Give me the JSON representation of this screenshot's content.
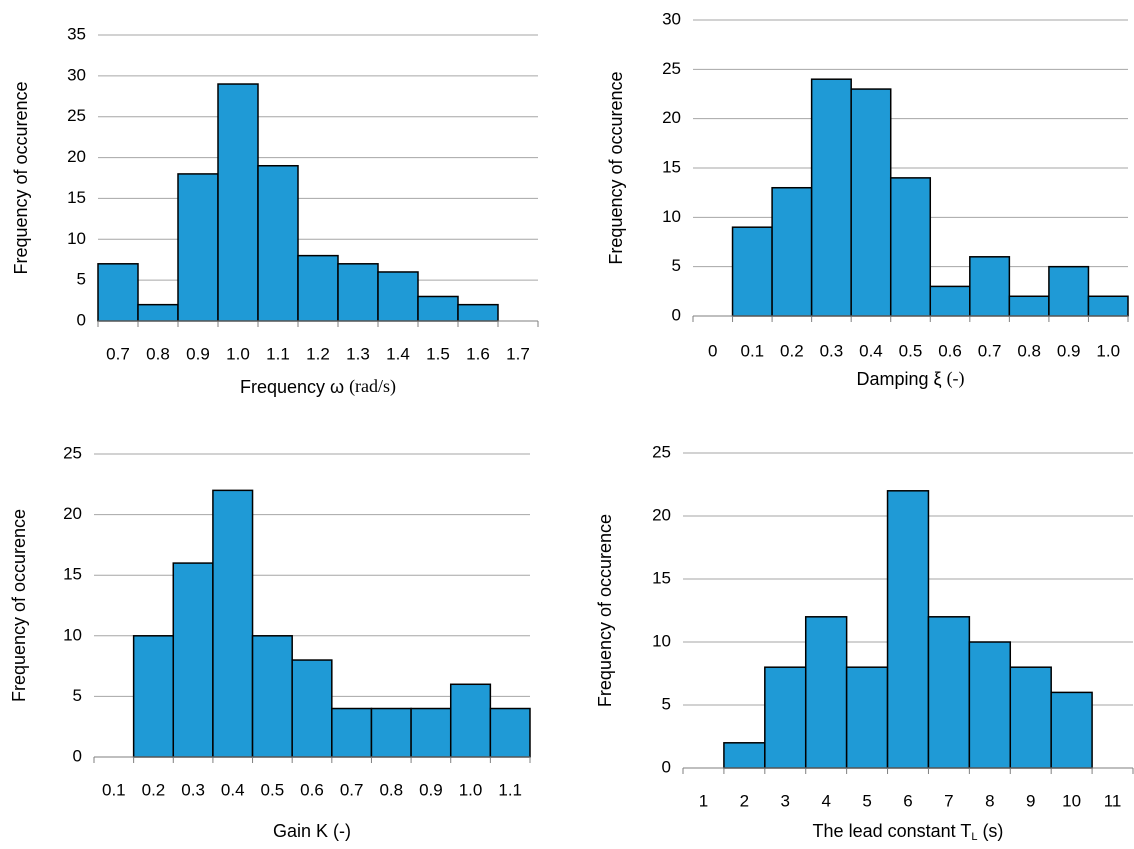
{
  "chart_data": [
    {
      "type": "bar",
      "ylabel": "Frequency of occurence",
      "xlabel": "Frequency ω",
      "xlabel_unit": "(rad/s)",
      "categories": [
        "0.7",
        "0.8",
        "0.9",
        "1.0",
        "1.1",
        "1.2",
        "1.3",
        "1.4",
        "1.5",
        "1.6",
        "1.7"
      ],
      "values": [
        7,
        2,
        18,
        29,
        19,
        8,
        7,
        6,
        3,
        2,
        0
      ],
      "color": "#1f9ad6",
      "ylim": [
        0,
        35
      ],
      "yticks": [
        0,
        5,
        10,
        15,
        20,
        25,
        30,
        35
      ],
      "grid": true
    },
    {
      "type": "bar",
      "ylabel": "Frequency of occurence",
      "xlabel": "Damping ξ",
      "xlabel_unit": "(-)",
      "categories": [
        "0",
        "0.1",
        "0.2",
        "0.3",
        "0.4",
        "0.5",
        "0.6",
        "0.7",
        "0.8",
        "0.9",
        "1.0"
      ],
      "values": [
        0,
        9,
        13,
        24,
        23,
        14,
        3,
        6,
        2,
        5,
        2
      ],
      "color": "#1f9ad6",
      "ylim": [
        0,
        30
      ],
      "yticks": [
        0,
        5,
        10,
        15,
        20,
        25,
        30
      ],
      "grid": true
    },
    {
      "type": "bar",
      "ylabel": "Frequency of occurence",
      "xlabel": "Gain K (-)",
      "categories": [
        "0.1",
        "0.2",
        "0.3",
        "0.4",
        "0.5",
        "0.6",
        "0.7",
        "0.8",
        "0.9",
        "1.0",
        "1.1"
      ],
      "values": [
        0,
        10,
        16,
        22,
        10,
        8,
        4,
        4,
        4,
        6,
        4
      ],
      "color": "#1f9ad6",
      "ylim": [
        0,
        25
      ],
      "yticks": [
        0,
        5,
        10,
        15,
        20,
        25
      ],
      "grid": true
    },
    {
      "type": "bar",
      "ylabel": "Frequency of occurence",
      "xlabel": "The lead constant T",
      "xlabel_subscript": "L",
      "xlabel_unit": "(s)",
      "categories": [
        "1",
        "2",
        "3",
        "4",
        "5",
        "6",
        "7",
        "8",
        "9",
        "10",
        "11"
      ],
      "values": [
        0,
        2,
        8,
        12,
        8,
        22,
        12,
        10,
        8,
        6,
        0
      ],
      "color": "#1f9ad6",
      "ylim": [
        0,
        25
      ],
      "yticks": [
        0,
        5,
        10,
        15,
        20,
        25
      ],
      "grid": true
    }
  ]
}
